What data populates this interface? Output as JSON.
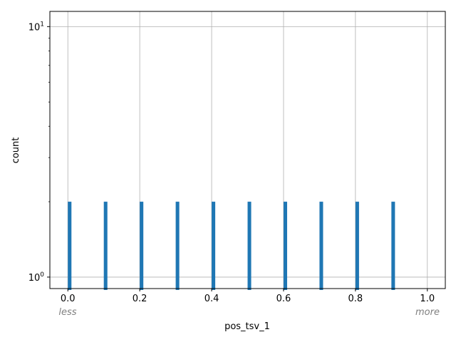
{
  "chart_data": {
    "type": "bar",
    "title": "",
    "xlabel": "pos_tsv_1",
    "ylabel": "count",
    "xlim": [
      -0.05,
      1.05
    ],
    "ylim": [
      0.9,
      11.5
    ],
    "yscale": "log",
    "grid": true,
    "bar_width": 0.01,
    "x": [
      0.0,
      0.1,
      0.2,
      0.3,
      0.4,
      0.5,
      0.6,
      0.7,
      0.8,
      0.9
    ],
    "values": [
      2,
      2,
      2,
      2,
      2,
      2,
      2,
      2,
      2,
      2
    ],
    "x_ticks": [
      0.0,
      0.2,
      0.4,
      0.6,
      0.8,
      1.0
    ],
    "x_tick_labels": [
      "0.0",
      "0.2",
      "0.4",
      "0.6",
      "0.8",
      "1.0"
    ],
    "y_ticks": [
      {
        "value": 1,
        "base": "10",
        "exp": "0"
      },
      {
        "value": 10,
        "base": "10",
        "exp": "1"
      }
    ],
    "y_minor_ticks": [
      2,
      3,
      4,
      5,
      6,
      7,
      8,
      9
    ],
    "x_hint_left": "less",
    "x_hint_right": "more",
    "colors": {
      "bar": "#1f77b4",
      "grid": "#b0b0b0",
      "hint": "#808080",
      "axis": "#000000"
    }
  }
}
